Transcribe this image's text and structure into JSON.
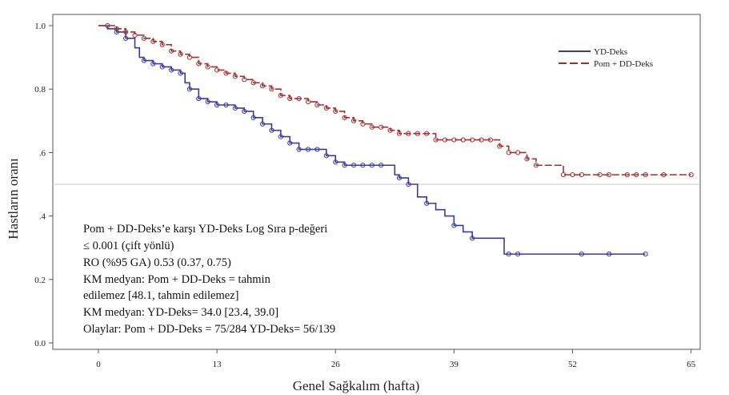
{
  "chart_data": {
    "type": "line",
    "subtype": "kaplan-meier",
    "xlabel": "Genel Sağkalım (hafta)",
    "ylabel": "Hastların oranı",
    "xlim": [
      -5,
      66
    ],
    "ylim": [
      0,
      1.0
    ],
    "x_ticks": [
      0,
      13,
      26,
      39,
      52,
      65
    ],
    "x_tick_labels": [
      "0",
      "13",
      "26",
      "39",
      "52",
      "65"
    ],
    "y_ticks": [
      0,
      0.2,
      0.4,
      0.6,
      0.8,
      1.0
    ],
    "y_tick_labels": [
      "0.0",
      "0.2",
      ".4",
      ".6",
      "0.8",
      "1.0"
    ],
    "reference_line_y": 0.5,
    "legend_position": "top-right",
    "series": [
      {
        "name": "YD-Deks",
        "color": "#3a3aa0",
        "style": "solid",
        "points": [
          [
            0,
            1.0
          ],
          [
            1,
            0.99
          ],
          [
            2,
            0.98
          ],
          [
            3,
            0.96
          ],
          [
            4,
            0.93
          ],
          [
            4.5,
            0.9
          ],
          [
            5,
            0.89
          ],
          [
            6,
            0.88
          ],
          [
            7,
            0.87
          ],
          [
            8,
            0.86
          ],
          [
            9,
            0.85
          ],
          [
            9.5,
            0.82
          ],
          [
            10,
            0.8
          ],
          [
            11,
            0.77
          ],
          [
            12,
            0.76
          ],
          [
            13,
            0.75
          ],
          [
            15,
            0.74
          ],
          [
            16,
            0.73
          ],
          [
            17,
            0.71
          ],
          [
            18,
            0.69
          ],
          [
            19,
            0.67
          ],
          [
            20,
            0.65
          ],
          [
            21,
            0.63
          ],
          [
            22,
            0.61
          ],
          [
            25,
            0.59
          ],
          [
            26,
            0.57
          ],
          [
            27,
            0.56
          ],
          [
            32,
            0.56
          ],
          [
            32.5,
            0.53
          ],
          [
            33,
            0.52
          ],
          [
            34,
            0.5
          ],
          [
            35,
            0.46
          ],
          [
            36,
            0.44
          ],
          [
            37,
            0.42
          ],
          [
            38,
            0.4
          ],
          [
            39,
            0.37
          ],
          [
            40,
            0.35
          ],
          [
            41,
            0.33
          ],
          [
            44,
            0.33
          ],
          [
            44.5,
            0.28
          ],
          [
            60,
            0.28
          ]
        ],
        "censor_x": [
          2,
          3,
          5,
          6,
          7,
          8,
          9,
          10,
          11,
          12,
          13,
          14,
          15,
          16,
          17,
          18,
          19,
          20,
          21,
          22,
          23,
          24,
          25,
          26,
          27,
          28,
          29,
          30,
          31,
          33,
          34,
          36,
          39,
          41,
          45,
          46,
          53,
          56,
          60
        ]
      },
      {
        "name": "Pom + DD-Deks",
        "color": "#a03030",
        "style": "dashed",
        "points": [
          [
            0,
            1.0
          ],
          [
            2,
            0.99
          ],
          [
            3,
            0.98
          ],
          [
            4,
            0.97
          ],
          [
            5,
            0.96
          ],
          [
            6,
            0.95
          ],
          [
            7,
            0.94
          ],
          [
            8,
            0.92
          ],
          [
            9,
            0.91
          ],
          [
            10,
            0.9
          ],
          [
            11,
            0.88
          ],
          [
            12,
            0.87
          ],
          [
            13,
            0.86
          ],
          [
            14,
            0.85
          ],
          [
            15,
            0.84
          ],
          [
            16,
            0.83
          ],
          [
            17,
            0.82
          ],
          [
            18,
            0.81
          ],
          [
            19,
            0.8
          ],
          [
            20,
            0.78
          ],
          [
            21,
            0.77
          ],
          [
            23,
            0.76
          ],
          [
            24,
            0.75
          ],
          [
            25,
            0.74
          ],
          [
            26,
            0.73
          ],
          [
            27,
            0.71
          ],
          [
            28,
            0.7
          ],
          [
            29,
            0.69
          ],
          [
            30,
            0.68
          ],
          [
            32,
            0.67
          ],
          [
            33,
            0.66
          ],
          [
            37,
            0.64
          ],
          [
            39,
            0.64
          ],
          [
            44,
            0.62
          ],
          [
            45,
            0.6
          ],
          [
            47,
            0.58
          ],
          [
            48,
            0.56
          ],
          [
            51,
            0.53
          ],
          [
            65,
            0.53
          ]
        ],
        "censor_x": [
          1,
          2,
          3,
          4,
          5,
          6,
          7,
          8,
          9,
          10,
          11,
          12,
          13,
          14,
          15,
          16,
          17,
          18,
          19,
          20,
          21,
          22,
          23,
          24,
          25,
          26,
          27,
          28,
          29,
          30,
          31,
          32,
          33,
          34,
          35,
          36,
          37,
          38,
          39,
          40,
          41,
          42,
          43,
          44,
          45,
          46,
          47,
          48,
          51,
          52,
          53,
          55,
          56,
          58,
          59,
          60,
          62,
          65
        ]
      }
    ],
    "annotation_lines": [
      "Pom + DD-Deks’e karşı YD-Deks Log Sıra p-değeri",
      "≤ 0.001 (çift yönlü)",
      "RO (%95 GA) 0.53 (0.37, 0.75)",
      "KM medyan: Pom + DD-Deks = tahmin",
      "edilemez [48.1, tahmin edilemez]",
      "KM medyan: YD-Deks= 34.0 [23.4, 39.0]",
      "Olaylar: Pom + DD-Deks = 75/284 YD-Deks= 56/139"
    ]
  }
}
